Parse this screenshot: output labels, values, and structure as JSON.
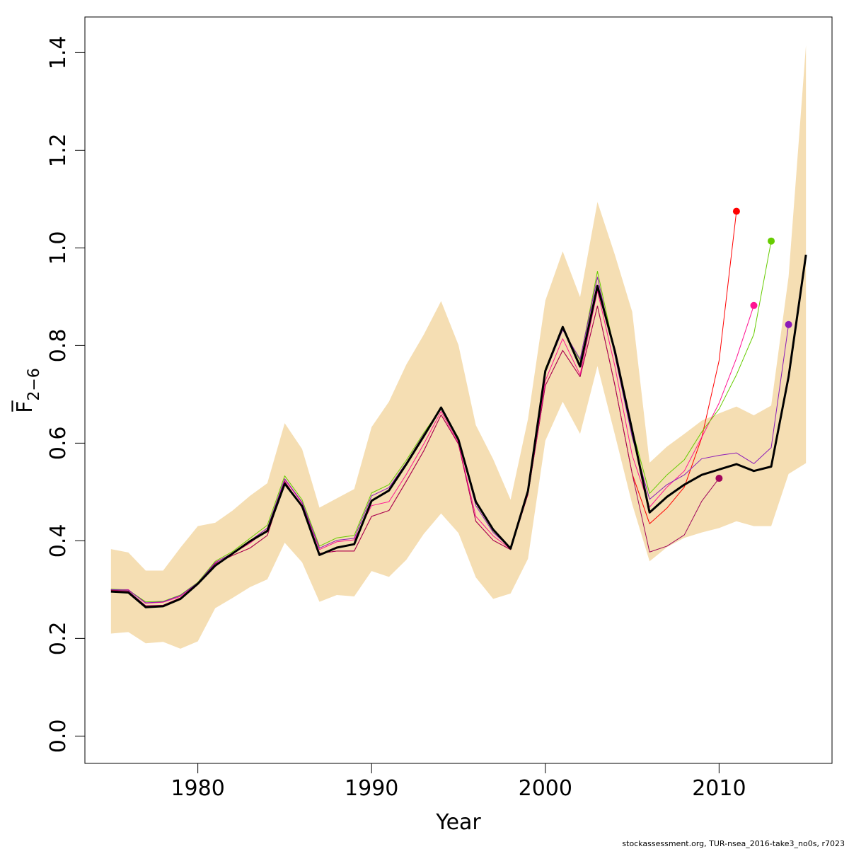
{
  "chart_data": {
    "type": "line",
    "xlabel": "Year",
    "ylabel": "F̅",
    "ylabel_subscript": "2−6",
    "xlim": [
      1973.5,
      2016.5
    ],
    "ylim": [
      -0.056,
      1.473
    ],
    "x_ticks": [
      1980,
      1990,
      2000,
      2010
    ],
    "y_ticks": [
      0.0,
      0.2,
      0.4,
      0.6,
      0.8,
      1.0,
      1.2,
      1.4
    ],
    "x_tick_labels": [
      "1980",
      "1990",
      "2000",
      "2010"
    ],
    "y_tick_labels": [
      "0.0",
      "0.2",
      "0.4",
      "0.6",
      "0.8",
      "1.0",
      "1.2",
      "1.4"
    ],
    "confidence_band": {
      "color": "#f5deb3",
      "years": [
        1975,
        1976,
        1977,
        1978,
        1979,
        1980,
        1981,
        1982,
        1983,
        1984,
        1985,
        1986,
        1987,
        1988,
        1989,
        1990,
        1991,
        1992,
        1993,
        1994,
        1995,
        1996,
        1997,
        1998,
        1999,
        2000,
        2001,
        2002,
        2003,
        2004,
        2005,
        2006,
        2007,
        2008,
        2009,
        2010,
        2011,
        2012,
        2013,
        2014,
        2015
      ],
      "upper": [
        0.383,
        0.376,
        0.339,
        0.339,
        0.386,
        0.43,
        0.437,
        0.462,
        0.492,
        0.518,
        0.641,
        0.588,
        0.468,
        0.487,
        0.506,
        0.633,
        0.685,
        0.761,
        0.822,
        0.891,
        0.801,
        0.637,
        0.567,
        0.484,
        0.649,
        0.892,
        0.993,
        0.899,
        1.094,
        0.986,
        0.869,
        0.56,
        0.593,
        0.619,
        0.646,
        0.661,
        0.675,
        0.657,
        0.677,
        0.941,
        1.415
      ],
      "lower": [
        0.21,
        0.213,
        0.19,
        0.193,
        0.179,
        0.194,
        0.262,
        0.283,
        0.305,
        0.321,
        0.396,
        0.356,
        0.275,
        0.289,
        0.286,
        0.338,
        0.326,
        0.361,
        0.414,
        0.456,
        0.416,
        0.325,
        0.281,
        0.292,
        0.363,
        0.605,
        0.685,
        0.619,
        0.758,
        0.618,
        0.475,
        0.358,
        0.387,
        0.406,
        0.417,
        0.426,
        0.44,
        0.43,
        0.43,
        0.537,
        0.559
      ]
    },
    "series": [
      {
        "color": "#000000",
        "width": 3,
        "years": [
          1975,
          1976,
          1977,
          1978,
          1979,
          1980,
          1981,
          1982,
          1983,
          1984,
          1985,
          1986,
          1987,
          1988,
          1989,
          1990,
          1991,
          1992,
          1993,
          1994,
          1995,
          1996,
          1997,
          1998,
          1999,
          2000,
          2001,
          2002,
          2003,
          2004,
          2005,
          2006,
          2007,
          2008,
          2009,
          2010,
          2011,
          2012,
          2013,
          2014,
          2015
        ],
        "values": [
          0.296,
          0.294,
          0.264,
          0.266,
          0.281,
          0.312,
          0.349,
          0.374,
          0.399,
          0.42,
          0.517,
          0.471,
          0.371,
          0.386,
          0.393,
          0.482,
          0.503,
          0.557,
          0.614,
          0.673,
          0.607,
          0.48,
          0.423,
          0.384,
          0.502,
          0.748,
          0.838,
          0.757,
          0.922,
          0.789,
          0.626,
          0.458,
          0.49,
          0.515,
          0.535,
          0.546,
          0.557,
          0.543,
          0.552,
          0.736,
          0.986
        ]
      },
      {
        "color": "#ff0000",
        "width": 1,
        "marker": true,
        "years": [
          1975,
          1976,
          1977,
          1978,
          1979,
          1980,
          1981,
          1982,
          1983,
          1984,
          1985,
          1986,
          1987,
          1988,
          1989,
          1990,
          1991,
          1992,
          1993,
          1994,
          1995,
          1996,
          1997,
          1998,
          1999,
          2000,
          2001,
          2002,
          2003,
          2004,
          2005,
          2006,
          2007,
          2008,
          2009,
          2010,
          2011
        ],
        "values": [
          0.298,
          0.297,
          0.266,
          0.268,
          0.283,
          0.313,
          0.353,
          0.37,
          0.385,
          0.411,
          0.522,
          0.468,
          0.374,
          0.379,
          0.379,
          0.45,
          0.462,
          0.522,
          0.584,
          0.658,
          0.598,
          0.44,
          0.401,
          0.382,
          0.495,
          0.718,
          0.79,
          0.736,
          0.881,
          0.719,
          0.537,
          0.435,
          0.467,
          0.51,
          0.611,
          0.769,
          1.075
        ]
      },
      {
        "color": "#a0055c",
        "width": 1,
        "marker": true,
        "years": [
          1975,
          1976,
          1977,
          1978,
          1979,
          1980,
          1981,
          1982,
          1983,
          1984,
          1985,
          1986,
          1987,
          1988,
          1989,
          1990,
          1991,
          1992,
          1993,
          1994,
          1995,
          1996,
          1997,
          1998,
          1999,
          2000,
          2001,
          2002,
          2003,
          2004,
          2005,
          2006,
          2007,
          2008,
          2009,
          2010
        ],
        "values": [
          0.299,
          0.297,
          0.267,
          0.268,
          0.283,
          0.313,
          0.353,
          0.37,
          0.385,
          0.411,
          0.522,
          0.468,
          0.374,
          0.379,
          0.379,
          0.45,
          0.462,
          0.522,
          0.584,
          0.658,
          0.598,
          0.44,
          0.401,
          0.382,
          0.495,
          0.718,
          0.79,
          0.736,
          0.881,
          0.719,
          0.537,
          0.377,
          0.389,
          0.412,
          0.481,
          0.528
        ]
      },
      {
        "color": "#ff1493",
        "width": 1,
        "marker": true,
        "years": [
          1975,
          1976,
          1977,
          1978,
          1979,
          1980,
          1981,
          1982,
          1983,
          1984,
          1985,
          1986,
          1987,
          1988,
          1989,
          1990,
          1991,
          1992,
          1993,
          1994,
          1995,
          1996,
          1997,
          1998,
          1999,
          2000,
          2001,
          2002,
          2003,
          2004,
          2005,
          2006,
          2007,
          2008,
          2009,
          2010,
          2011,
          2012
        ],
        "values": [
          0.3,
          0.3,
          0.272,
          0.274,
          0.286,
          0.314,
          0.356,
          0.374,
          0.395,
          0.423,
          0.526,
          0.477,
          0.382,
          0.398,
          0.402,
          0.472,
          0.48,
          0.536,
          0.598,
          0.665,
          0.6,
          0.45,
          0.41,
          0.383,
          0.496,
          0.728,
          0.814,
          0.74,
          0.912,
          0.758,
          0.575,
          0.469,
          0.51,
          0.543,
          0.612,
          0.682,
          0.774,
          0.882
        ]
      },
      {
        "color": "#66cc00",
        "width": 1,
        "marker": true,
        "years": [
          1975,
          1976,
          1977,
          1978,
          1979,
          1980,
          1981,
          1982,
          1983,
          1984,
          1985,
          1986,
          1987,
          1988,
          1989,
          1990,
          1991,
          1992,
          1993,
          1994,
          1995,
          1996,
          1997,
          1998,
          1999,
          2000,
          2001,
          2002,
          2003,
          2004,
          2005,
          2006,
          2007,
          2008,
          2009,
          2010,
          2011,
          2012,
          2013
        ],
        "values": [
          0.301,
          0.299,
          0.275,
          0.276,
          0.289,
          0.315,
          0.358,
          0.378,
          0.405,
          0.432,
          0.533,
          0.484,
          0.389,
          0.406,
          0.411,
          0.498,
          0.515,
          0.565,
          0.621,
          0.671,
          0.611,
          0.478,
          0.42,
          0.386,
          0.506,
          0.753,
          0.834,
          0.769,
          0.952,
          0.787,
          0.628,
          0.497,
          0.535,
          0.566,
          0.623,
          0.67,
          0.74,
          0.823,
          1.014
        ]
      },
      {
        "color": "#8b1ab8",
        "width": 1,
        "marker": true,
        "years": [
          1975,
          1976,
          1977,
          1978,
          1979,
          1980,
          1981,
          1982,
          1983,
          1984,
          1985,
          1986,
          1987,
          1988,
          1989,
          1990,
          1991,
          1992,
          1993,
          1994,
          1995,
          1996,
          1997,
          1998,
          1999,
          2000,
          2001,
          2002,
          2003,
          2004,
          2005,
          2006,
          2007,
          2008,
          2009,
          2010,
          2011,
          2012,
          2013,
          2014
        ],
        "values": [
          0.3,
          0.299,
          0.273,
          0.275,
          0.288,
          0.314,
          0.355,
          0.375,
          0.4,
          0.426,
          0.527,
          0.479,
          0.385,
          0.401,
          0.405,
          0.492,
          0.509,
          0.56,
          0.618,
          0.67,
          0.608,
          0.472,
          0.417,
          0.385,
          0.503,
          0.745,
          0.832,
          0.772,
          0.94,
          0.78,
          0.612,
          0.485,
          0.515,
          0.535,
          0.568,
          0.575,
          0.58,
          0.558,
          0.591,
          0.843
        ]
      }
    ]
  },
  "footer": "stockassessment.org, TUR-nsea_2016-take3_no0s, r7023"
}
